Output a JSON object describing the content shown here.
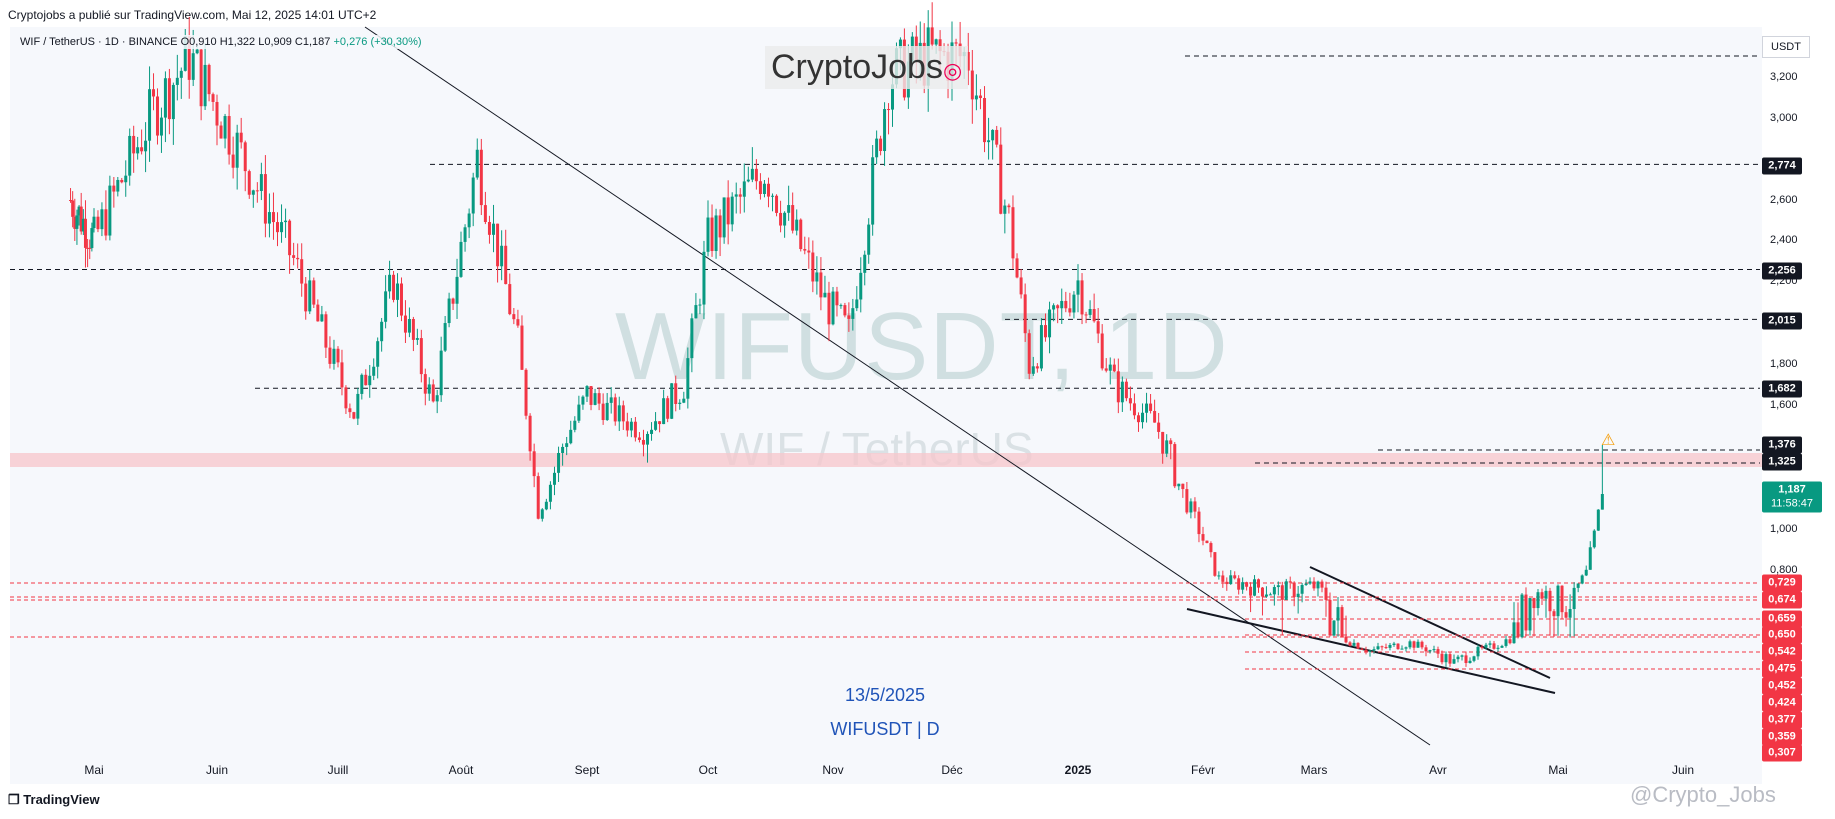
{
  "header": {
    "publish_line": "Cryptojobs a publié sur TradingView.com, Mai 12, 2025 14:01 UTC+2",
    "symbol_line": "WIF / TetherUS · 1D · BINANCE",
    "ohlc": "O0,910 H1,322 L0,909 C1,187",
    "change": "+0,276 (+30,30%)"
  },
  "logo_text": "CryptoJobs",
  "watermark": {
    "main": "WIFUSDT, 1D",
    "sub": "WIF / TetherUS"
  },
  "annotation": {
    "date": "13/5/2025",
    "ticker": "WIFUSDT | D"
  },
  "footer": {
    "brand": "TradingView",
    "credit": "@Crypto_Jobs"
  },
  "currency_label": "USDT",
  "colors": {
    "up": "#089981",
    "down": "#f23645",
    "resistance_line": "#131722",
    "support_line": "#f23645",
    "zone": "#f7c6cb"
  },
  "chart_data": {
    "type": "candlestick",
    "title": "WIFUSDT, 1D",
    "x_axis_labels": [
      "Mai",
      "Juin",
      "Juill",
      "Août",
      "Sept",
      "Oct",
      "Nov",
      "Déc",
      "2025",
      "Févr",
      "Mars",
      "Avr",
      "Mai",
      "Juin"
    ],
    "y_axis_ticks": [
      "3,200",
      "3,000",
      "2,600",
      "2,400",
      "2,200",
      "1,800",
      "1,600",
      "1,000",
      "0,800"
    ],
    "ylim": [
      0.3,
      3.3
    ],
    "last_price": "1,187",
    "countdown": "11:58:47",
    "resistance_levels": [
      "2,774",
      "2,256",
      "2,015",
      "1,682",
      "1,376",
      "1,325"
    ],
    "support_levels": [
      "0,729",
      "0,674",
      "0,659",
      "0,650",
      "0,542",
      "0,475",
      "0,452",
      "0,424",
      "0,377",
      "0,359",
      "0,307"
    ],
    "price_path": [
      [
        "2024-04-20",
        2.6
      ],
      [
        "2024-05-01",
        2.4
      ],
      [
        "2024-05-15",
        3.0
      ],
      [
        "2024-05-25",
        3.3
      ],
      [
        "2024-06-05",
        2.9
      ],
      [
        "2024-06-20",
        2.3
      ],
      [
        "2024-07-05",
        1.55
      ],
      [
        "2024-07-15",
        2.2
      ],
      [
        "2024-07-25",
        1.6
      ],
      [
        "2024-08-05",
        2.8
      ],
      [
        "2024-08-15",
        1.9
      ],
      [
        "2024-08-20",
        1.1
      ],
      [
        "2024-09-01",
        1.65
      ],
      [
        "2024-09-15",
        1.45
      ],
      [
        "2024-09-25",
        1.7
      ],
      [
        "2024-10-01",
        2.4
      ],
      [
        "2024-10-15",
        2.75
      ],
      [
        "2024-10-30",
        2.1
      ],
      [
        "2024-11-05",
        1.95
      ],
      [
        "2024-11-15",
        3.2
      ],
      [
        "2024-11-25",
        3.3
      ],
      [
        "2024-12-05",
        3.3
      ],
      [
        "2024-12-15",
        2.5
      ],
      [
        "2024-12-20",
        1.8
      ],
      [
        "2025-01-01",
        2.2
      ],
      [
        "2025-01-10",
        1.7
      ],
      [
        "2025-01-20",
        1.5
      ],
      [
        "2025-01-30",
        1.05
      ],
      [
        "2025-02-05",
        0.75
      ],
      [
        "2025-02-20",
        0.7
      ],
      [
        "2025-03-01",
        0.72
      ],
      [
        "2025-03-15",
        0.55
      ],
      [
        "2025-03-25",
        0.6
      ],
      [
        "2025-04-05",
        0.5
      ],
      [
        "2025-04-15",
        0.58
      ],
      [
        "2025-04-25",
        0.7
      ],
      [
        "2025-05-05",
        0.68
      ],
      [
        "2025-05-08",
        0.78
      ],
      [
        "2025-05-10",
        0.96
      ],
      [
        "2025-05-12",
        1.187
      ]
    ]
  }
}
